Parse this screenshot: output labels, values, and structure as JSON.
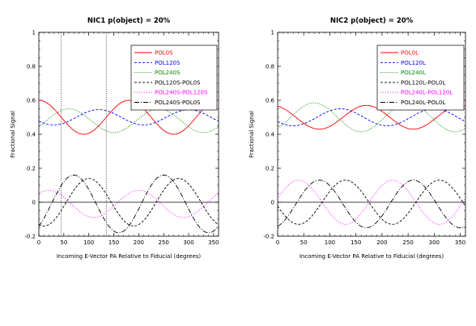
{
  "chart_data": [
    {
      "type": "line",
      "title": "NIC1 p(object) = 20%",
      "xlabel": "Incoming E-Vector PA Relative to Fiducial (degrees)",
      "ylabel": "Fractional Signal",
      "xlim": [
        0,
        360
      ],
      "ylim": [
        -0.2,
        1
      ],
      "xticks": [
        "0",
        "50",
        "100",
        "150",
        "200",
        "250",
        "300",
        "350"
      ],
      "yticks": [
        "-0.2",
        "0",
        "0.2",
        "0.4",
        "0.6",
        "0.8",
        "1"
      ],
      "legend_position": "top-right",
      "zero_line": true,
      "vlines": [
        45,
        135
      ],
      "grid": false,
      "series": [
        {
          "name": "POL0S",
          "color": "#ff0000",
          "dash": "solid",
          "mean": 0.5,
          "amp": 0.1,
          "phase": 0
        },
        {
          "name": "POL120S",
          "color": "#0000ff",
          "dash": "3,2",
          "mean": 0.5,
          "amp": 0.045,
          "phase": 120
        },
        {
          "name": "POL240S",
          "color": "#008800",
          "dash": "1,1.5",
          "mean": 0.48,
          "amp": 0.07,
          "phase": 240
        },
        {
          "name": "POL120S-POL0S",
          "color": "#000000",
          "dash": "3,2",
          "mean": 0,
          "amp": 0.14,
          "phase": 280
        },
        {
          "name": "POL240S-POL120S",
          "color": "#ff00ff",
          "dash": "1,2",
          "mean": -0.01,
          "amp": 0.08,
          "phase": 200
        },
        {
          "name": "POL240S-POL0S",
          "color": "#000000",
          "dash": "6,2,1,2",
          "mean": -0.01,
          "amp": 0.17,
          "phase": 250
        }
      ]
    },
    {
      "type": "line",
      "title": "NIC2 p(object) = 20%",
      "xlabel": "Incoming E-Vector PA Relative to Fiducial (degrees)",
      "ylabel": "Fractional Signal",
      "xlim": [
        0,
        360
      ],
      "ylim": [
        -0.2,
        1
      ],
      "xticks": [
        "0",
        "50",
        "100",
        "150",
        "200",
        "250",
        "300",
        "350"
      ],
      "yticks": [
        "-0.2",
        "0",
        "0.2",
        "0.4",
        "0.6",
        "0.8",
        "1"
      ],
      "legend_position": "top-right",
      "zero_line": true,
      "vlines": [],
      "grid": false,
      "series": [
        {
          "name": "POL0L",
          "color": "#ff0000",
          "dash": "solid",
          "mean": 0.5,
          "amp": 0.07,
          "phase": 350
        },
        {
          "name": "POL120L",
          "color": "#0000ff",
          "dash": "3,2",
          "mean": 0.5,
          "amp": 0.05,
          "phase": 120
        },
        {
          "name": "POL240L",
          "color": "#008800",
          "dash": "1,1.5",
          "mean": 0.5,
          "amp": 0.085,
          "phase": 250
        },
        {
          "name": "POL120L-POL0L",
          "color": "#000000",
          "dash": "3,2",
          "mean": 0,
          "amp": 0.13,
          "phase": 310
        },
        {
          "name": "POL240L-POL120L",
          "color": "#ff00ff",
          "dash": "1,2",
          "mean": 0.0,
          "amp": 0.13,
          "phase": 220
        },
        {
          "name": "POL240L-POL0L",
          "color": "#000000",
          "dash": "6,2,1,2",
          "mean": -0.01,
          "amp": 0.14,
          "phase": 260
        }
      ]
    }
  ]
}
